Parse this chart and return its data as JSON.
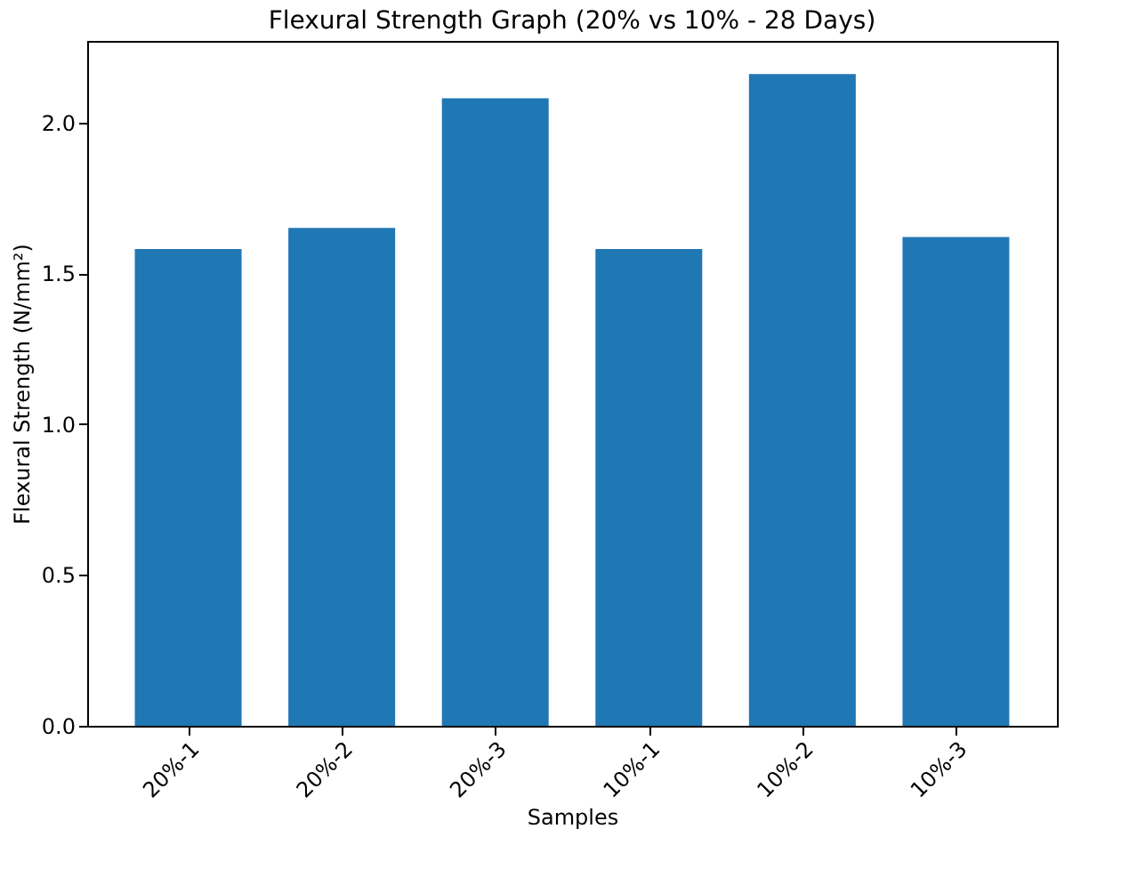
{
  "chart_data": {
    "type": "bar",
    "title": "Flexural Strength Graph (20% vs 10% - 28 Days)",
    "xlabel": "Samples",
    "ylabel": "Flexural Strength (N/mm²)",
    "categories": [
      "20%-1",
      "20%-2",
      "20%-3",
      "10%-1",
      "10%-2",
      "10%-3"
    ],
    "values": [
      1.58,
      1.65,
      2.08,
      1.58,
      2.16,
      1.62
    ],
    "color": "#1f77b4",
    "ylim": [
      0,
      2.27
    ],
    "yticks": [
      {
        "value": 0,
        "label": "0.0"
      },
      0.5,
      {
        "value": 1,
        "label": "1.0"
      },
      1.5,
      {
        "value": 2,
        "label": "2.0"
      }
    ],
    "grid": false
  }
}
